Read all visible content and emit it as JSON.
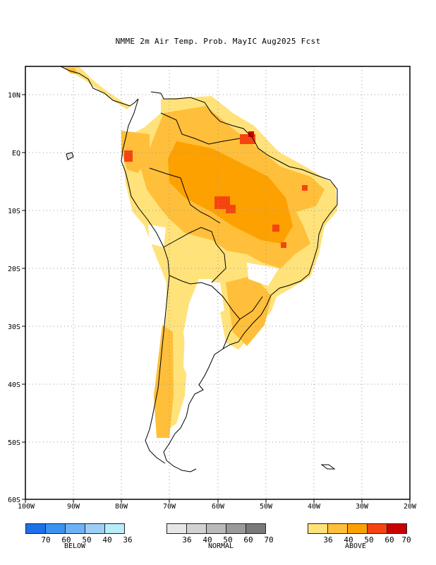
{
  "title": "NMME 2m Air Temp. Prob. MayIC  Aug2025 Fcst",
  "map": {
    "lon_range": [
      -100,
      -20
    ],
    "lat_range": [
      -60,
      15
    ],
    "x_ticks": [
      "100W",
      "90W",
      "80W",
      "70W",
      "60W",
      "50W",
      "40W",
      "30W",
      "20W"
    ],
    "y_ticks": [
      "10N",
      "EQ",
      "10S",
      "20S",
      "30S",
      "40S",
      "50S",
      "60S"
    ]
  },
  "legend": {
    "below": {
      "label": "BELOW",
      "ticks": [
        "70",
        "60",
        "50",
        "40",
        "36"
      ],
      "colors": [
        "#1f6fe8",
        "#3c92f0",
        "#6fb1f5",
        "#9dcef8",
        "#b8ecf9"
      ]
    },
    "normal": {
      "label": "NORMAL",
      "ticks": [
        "36",
        "40",
        "50",
        "60",
        "70"
      ],
      "colors": [
        "#e6e6e6",
        "#d2d2d2",
        "#b9b9b9",
        "#9a9a9a",
        "#7a7a7a"
      ]
    },
    "above": {
      "label": "ABOVE",
      "ticks": [
        "36",
        "40",
        "50",
        "60",
        "70"
      ],
      "colors": [
        "#ffe27a",
        "#ffbf3a",
        "#fca100",
        "#f64411",
        "#c90000"
      ]
    }
  }
}
